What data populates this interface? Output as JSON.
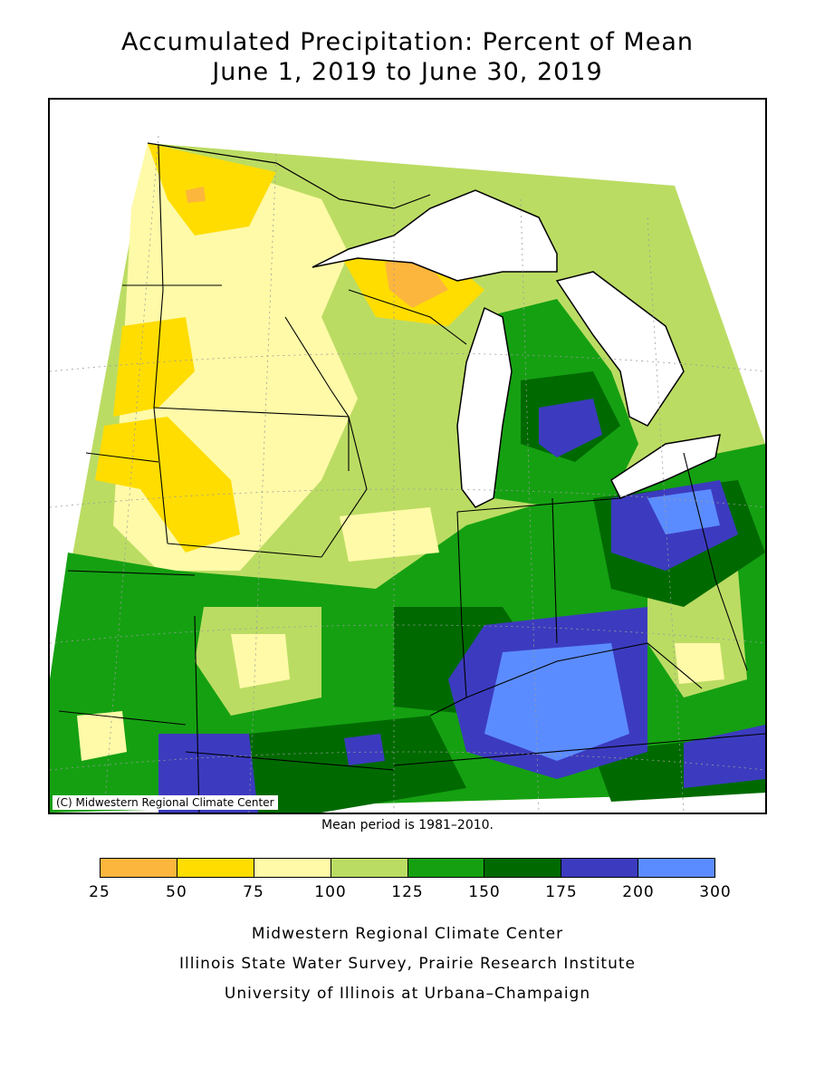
{
  "title_line1": "Accumulated Precipitation: Percent of Mean",
  "title_line2": "June 1, 2019 to June 30, 2019",
  "copyright": "(C) Midwestern Regional Climate Center",
  "mean_period": "Mean period is 1981–2010.",
  "legend": {
    "ticks": [
      "25",
      "50",
      "75",
      "100",
      "125",
      "150",
      "175",
      "200",
      "300"
    ],
    "colors": [
      "#fdb63d",
      "#ffdd00",
      "#fffaa8",
      "#bbdc63",
      "#15a012",
      "#006a00",
      "#3c3bbf",
      "#5b8cff"
    ]
  },
  "credits": [
    "Midwestern Regional Climate Center",
    "Illinois State Water Survey, Prairie Research Institute",
    "University of Illinois at Urbana–Champaign"
  ],
  "colors": {
    "land_base": "#15a012",
    "water": "#ffffff",
    "border": "#000000"
  }
}
